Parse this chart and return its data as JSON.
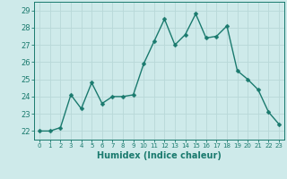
{
  "x": [
    0,
    1,
    2,
    3,
    4,
    5,
    6,
    7,
    8,
    9,
    10,
    11,
    12,
    13,
    14,
    15,
    16,
    17,
    18,
    19,
    20,
    21,
    22,
    23
  ],
  "y": [
    22.0,
    22.0,
    22.2,
    24.1,
    23.3,
    24.8,
    23.6,
    24.0,
    24.0,
    24.1,
    25.9,
    27.2,
    28.5,
    27.0,
    27.6,
    28.8,
    27.4,
    27.5,
    28.1,
    25.5,
    25.0,
    24.4,
    23.1,
    22.4
  ],
  "line_color": "#1a7a6e",
  "marker": "D",
  "marker_size": 2.5,
  "bg_color": "#ceeaea",
  "grid_color": "#b8d8d8",
  "xlabel": "Humidex (Indice chaleur)",
  "ylim": [
    21.5,
    29.5
  ],
  "xlim": [
    -0.5,
    23.5
  ],
  "yticks": [
    22,
    23,
    24,
    25,
    26,
    27,
    28,
    29
  ],
  "xticks": [
    0,
    1,
    2,
    3,
    4,
    5,
    6,
    7,
    8,
    9,
    10,
    11,
    12,
    13,
    14,
    15,
    16,
    17,
    18,
    19,
    20,
    21,
    22,
    23
  ],
  "xlabel_fontsize": 7,
  "tick_fontsize": 6,
  "line_width": 1.0
}
